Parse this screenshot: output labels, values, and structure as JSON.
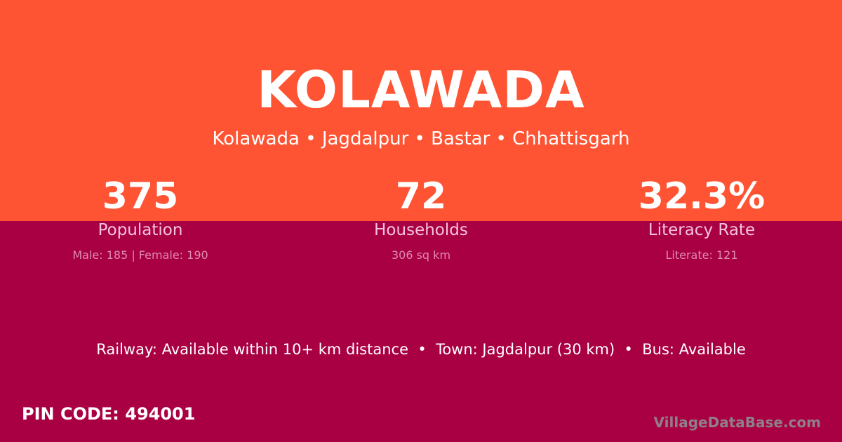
{
  "village": {
    "name": "KOLAWADA",
    "breadcrumb": "Kolawada • Jagdalpur • Bastar • Chhattisgarh"
  },
  "stats": [
    {
      "value": "375",
      "label": "Population",
      "detail": "Male: 185 | Female: 190"
    },
    {
      "value": "72",
      "label": "Households",
      "detail": "306 sq km"
    },
    {
      "value": "32.3%",
      "label": "Literacy Rate",
      "detail": "Literate: 121"
    }
  ],
  "connectivity": "Railway: Available within 10+ km distance  •  Town: Jagdalpur (30 km)  •  Bus: Available",
  "pin": "PIN CODE: 494001",
  "brand": "VillageDataBase.com",
  "colors": {
    "top": "#ff5433",
    "bottom": "#a80042"
  }
}
